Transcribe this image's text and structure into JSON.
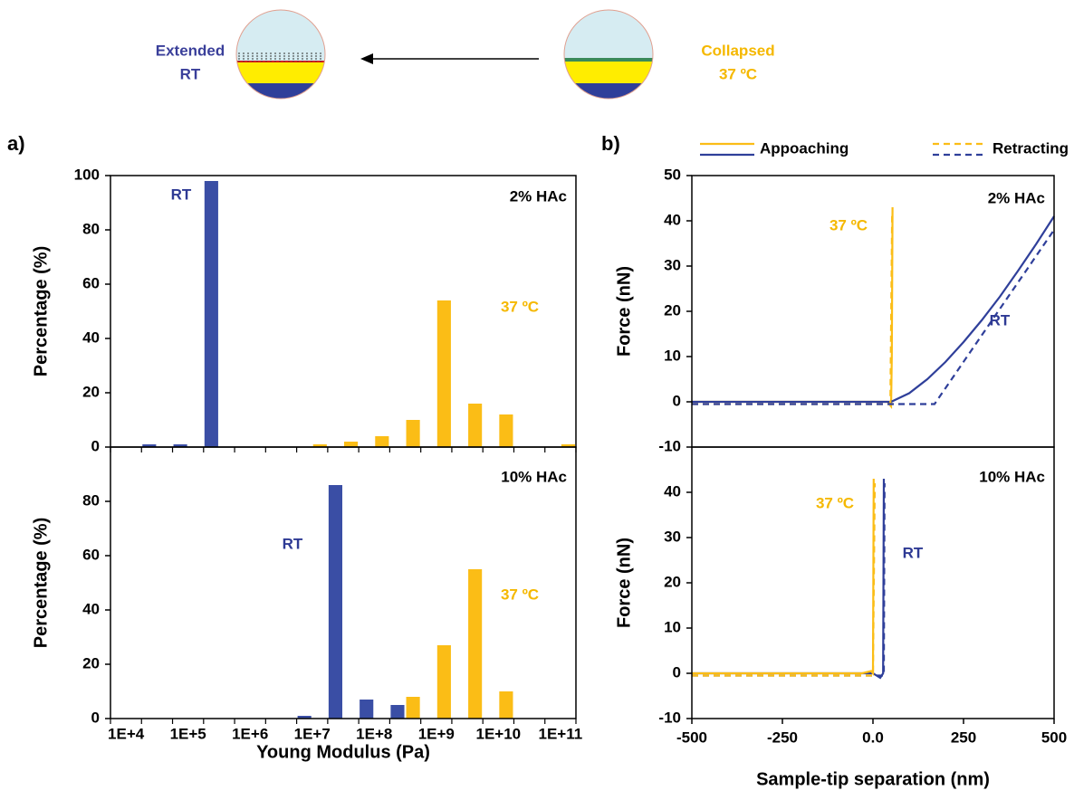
{
  "schematic": {
    "left_label": [
      "Extended",
      "RT"
    ],
    "right_label": [
      "Collapsed",
      "37 ºC"
    ]
  },
  "panel_labels": [
    "a)",
    "b)"
  ],
  "chart_data": [
    {
      "type": "bar",
      "y_label": "Percentage (%)",
      "categories": [
        null,
        null,
        null,
        null,
        null,
        null,
        null,
        null,
        null,
        null,
        null,
        null,
        null,
        null,
        null
      ],
      "series": [
        {
          "color": "#3a4ea5",
          "values": [
            0,
            1,
            1,
            98,
            0,
            0,
            0,
            0,
            0,
            0,
            0,
            0,
            0,
            0,
            0
          ]
        },
        {
          "color": "#fbbd16",
          "values": [
            0,
            0,
            0,
            0,
            0,
            0,
            1,
            2,
            4,
            10,
            54,
            16,
            12,
            0,
            1
          ]
        }
      ],
      "ylim": [
        0,
        100
      ],
      "yticks": [
        0,
        20,
        40,
        60,
        80,
        100
      ],
      "annotations": [
        {
          "text": "2% HAc",
          "color": "#000000"
        },
        {
          "text": "RT",
          "color": "#2e3a94"
        },
        {
          "text": "37 ºC",
          "color": "#f5b800"
        }
      ]
    },
    {
      "type": "bar",
      "y_label": "Percentage (%)",
      "x_label": "Young Modulus (Pa)",
      "categories": [
        "1E+4",
        null,
        "1E+5",
        null,
        "1E+6",
        null,
        "1E+7",
        null,
        "1E+8",
        null,
        "1E+9",
        null,
        "1E+10",
        null,
        "1E+11"
      ],
      "series": [
        {
          "color": "#3a4ea5",
          "values": [
            0,
            0,
            0,
            0,
            0,
            0,
            1,
            86,
            7,
            5,
            0,
            0,
            0,
            0,
            0
          ]
        },
        {
          "color": "#fbbd16",
          "values": [
            0,
            0,
            0,
            0,
            0,
            0,
            0,
            0,
            0,
            8,
            27,
            55,
            10,
            0,
            0
          ]
        }
      ],
      "ylim": [
        0,
        100
      ],
      "yticks": [
        0,
        20,
        40,
        60,
        80
      ],
      "annotations": [
        {
          "text": "10% HAc",
          "color": "#000000"
        },
        {
          "text": "RT",
          "color": "#2e3a94"
        },
        {
          "text": "37 ºC",
          "color": "#f5b800"
        }
      ]
    },
    {
      "type": "line",
      "y_label": "Force (nN)",
      "xlim": [
        -500,
        500
      ],
      "ylim": [
        -10,
        50
      ],
      "yticks": [
        -10,
        0,
        10,
        20,
        30,
        40,
        50
      ],
      "series": [
        {
          "name": "Appoaching",
          "color": "#fbbd16",
          "line_style": "solid",
          "x": [
            -500,
            40,
            50,
            52,
            54
          ],
          "values": [
            0,
            0,
            -1,
            10,
            43
          ]
        },
        {
          "name": "Appoaching",
          "color": "#2f3f9a",
          "line_style": "solid",
          "x": [
            -500,
            50,
            100,
            150,
            200,
            250,
            300,
            350,
            400,
            450,
            500
          ],
          "values": [
            0,
            0,
            1.9,
            5,
            8.8,
            13.2,
            18,
            23.2,
            28.9,
            34.8,
            41
          ]
        },
        {
          "name": "Retracting",
          "color": "#fbbd16",
          "line_style": "dashed",
          "x": [
            -500,
            48,
            53
          ],
          "values": [
            -0.5,
            -0.5,
            42
          ]
        },
        {
          "name": "Retracting",
          "color": "#2f3f9a",
          "line_style": "dashed",
          "x": [
            -500,
            170,
            500
          ],
          "values": [
            -0.5,
            -0.5,
            38
          ]
        }
      ],
      "annotations": [
        {
          "text": "2% HAc",
          "color": "#000000"
        },
        {
          "text": "37 ºC",
          "color": "#f5b800"
        },
        {
          "text": "RT",
          "color": "#2e3a94"
        }
      ]
    },
    {
      "type": "line",
      "y_label": "Force (nN)",
      "x_label": "Sample-tip separation (nm)",
      "xlim": [
        -500,
        500
      ],
      "ylim": [
        -10,
        50
      ],
      "yticks": [
        -10,
        0,
        10,
        20,
        30,
        40
      ],
      "xticks": [
        -500,
        -250,
        {
          "value": 0,
          "label": "0.0"
        },
        250,
        500
      ],
      "series": [
        {
          "name": "Appoaching",
          "color": "#2f3f9a",
          "line_style": "solid",
          "x": [
            -500,
            0,
            20,
            28,
            30
          ],
          "values": [
            0,
            0,
            -1,
            0,
            43
          ]
        },
        {
          "name": "Retracting",
          "color": "#2f3f9a",
          "line_style": "dashed",
          "x": [
            -500,
            30,
            32
          ],
          "values": [
            -0.5,
            -0.5,
            42
          ]
        },
        {
          "name": "Appoaching",
          "color": "#fbbd16",
          "line_style": "solid",
          "x": [
            -500,
            -30,
            -5,
            0,
            2
          ],
          "values": [
            0,
            0,
            0.5,
            0,
            43
          ]
        },
        {
          "name": "Retracting",
          "color": "#fbbd16",
          "line_style": "dashed",
          "x": [
            -500,
            0,
            5
          ],
          "values": [
            -0.5,
            -0.5,
            42
          ]
        }
      ],
      "annotations": [
        {
          "text": "10% HAc",
          "color": "#000000"
        },
        {
          "text": "37 ºC",
          "color": "#f5b800"
        },
        {
          "text": "RT",
          "color": "#2e3a94"
        }
      ]
    }
  ]
}
